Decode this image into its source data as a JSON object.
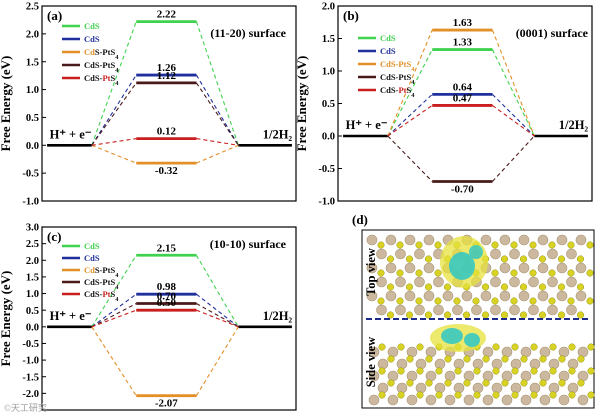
{
  "chart_data": [
    {
      "id": "a",
      "type": "line",
      "panel_label": "(a)",
      "surface_label": "(11-20) surface",
      "ylabel": "Free Energy (eV)",
      "ylim": [
        -1.0,
        2.5
      ],
      "yticks": [
        "-1.0",
        "-0.5",
        "0.0",
        "0.5",
        "1.0",
        "1.5",
        "2.0",
        "2.5"
      ],
      "ytick_values": [
        -1.0,
        -0.5,
        0.0,
        0.5,
        1.0,
        1.5,
        2.0,
        2.5
      ],
      "start_label": "H⁺ + e⁻",
      "end_label": "1/2H₂",
      "series": [
        {
          "name": "CdS",
          "name_parts": [
            {
              "text": "CdS",
              "color": "#3fd24e"
            }
          ],
          "color": "#3fd24e",
          "value": 2.22,
          "label": "2.22"
        },
        {
          "name": "CdS",
          "name_parts": [
            {
              "text": "CdS",
              "color": "#1f2f9c"
            }
          ],
          "color": "#1f2f9c",
          "value": 1.26,
          "label": "1.26"
        },
        {
          "name": "CdS-PtS4",
          "name_parts": [
            {
              "text": "Cd",
              "color": "#e38f27"
            },
            {
              "text": "S-PtS",
              "color": "#111111"
            },
            {
              "text": "4",
              "color": "#111111",
              "sub": true
            }
          ],
          "color": "#e38f27",
          "value": -0.32,
          "label": "-0.32"
        },
        {
          "name": "CdS-PtS4",
          "name_parts": [
            {
              "text": "CdS-PtS",
              "color": "#111111"
            },
            {
              "text": "4",
              "color": "#111111",
              "sub": true
            }
          ],
          "color": "#4a1a1a",
          "value": 1.12,
          "label": "1.12"
        },
        {
          "name": "CdS-PtS4",
          "name_parts": [
            {
              "text": "CdS-",
              "color": "#111111"
            },
            {
              "text": "Pt",
              "color": "#c81e1e"
            },
            {
              "text": "S",
              "color": "#111111"
            },
            {
              "text": "4",
              "color": "#111111",
              "sub": true
            }
          ],
          "color": "#c81e1e",
          "value": 0.12,
          "label": "0.12"
        }
      ]
    },
    {
      "id": "b",
      "type": "line",
      "panel_label": "(b)",
      "surface_label": "(0001) surface",
      "ylabel": "Free Energy (eV)",
      "ylim": [
        -1.0,
        2.0
      ],
      "yticks": [
        "-1.0",
        "-0.5",
        "0.0",
        "0.5",
        "1.0",
        "1.5",
        "2.0"
      ],
      "ytick_values": [
        -1.0,
        -0.5,
        0.0,
        0.5,
        1.0,
        1.5,
        2.0
      ],
      "start_label": "H⁺ + e⁻",
      "end_label": "1/2H₂",
      "series": [
        {
          "name": "CdS",
          "name_parts": [
            {
              "text": "CdS",
              "color": "#3fd24e"
            }
          ],
          "color": "#3fd24e",
          "value": 1.33,
          "label": "1.33"
        },
        {
          "name": "CdS",
          "name_parts": [
            {
              "text": "CdS",
              "color": "#1f2f9c"
            }
          ],
          "color": "#1f2f9c",
          "value": 0.64,
          "label": "0.64"
        },
        {
          "name": "CdS-PtS4",
          "name_parts": [
            {
              "text": "CdS-PtS",
              "color": "#e38f27"
            },
            {
              "text": "4",
              "color": "#e38f27",
              "sub": true
            }
          ],
          "color": "#e38f27",
          "value": 1.63,
          "label": "1.63"
        },
        {
          "name": "CdS-PtS4",
          "name_parts": [
            {
              "text": "CdS-PtS",
              "color": "#111111"
            },
            {
              "text": "4",
              "color": "#111111",
              "sub": true
            }
          ],
          "color": "#4a1a1a",
          "value": -0.7,
          "label": "-0.70"
        },
        {
          "name": "CdS-PtS4",
          "name_parts": [
            {
              "text": "CdS-",
              "color": "#111111"
            },
            {
              "text": "Pt",
              "color": "#c81e1e"
            },
            {
              "text": "S",
              "color": "#111111"
            },
            {
              "text": "4",
              "color": "#111111",
              "sub": true
            }
          ],
          "color": "#c81e1e",
          "value": 0.47,
          "label": "0.47"
        }
      ]
    },
    {
      "id": "c",
      "type": "line",
      "panel_label": "(c)",
      "surface_label": "(10-10) surface",
      "ylabel": "Free Energy (eV)",
      "ylim": [
        -2.5,
        3.0
      ],
      "yticks": [
        "-2.0",
        "-1.5",
        "-1.0",
        "-0.5",
        "0.0",
        "0.5",
        "1.0",
        "1.5",
        "2.0",
        "2.5",
        "3.0"
      ],
      "ytick_values": [
        -2.0,
        -1.5,
        -1.0,
        -0.5,
        0.0,
        0.5,
        1.0,
        1.5,
        2.0,
        2.5,
        3.0
      ],
      "start_label": "H⁺ + e⁻",
      "end_label": "1/2H₂",
      "series": [
        {
          "name": "CdS",
          "name_parts": [
            {
              "text": "CdS",
              "color": "#3fd24e"
            }
          ],
          "color": "#3fd24e",
          "value": 2.15,
          "label": "2.15"
        },
        {
          "name": "CdS",
          "name_parts": [
            {
              "text": "CdS",
              "color": "#1f2f9c"
            }
          ],
          "color": "#1f2f9c",
          "value": 0.98,
          "label": "0.98"
        },
        {
          "name": "CdS-PtS4",
          "name_parts": [
            {
              "text": "Cd",
              "color": "#e38f27"
            },
            {
              "text": "S-PtS",
              "color": "#111111"
            },
            {
              "text": "4",
              "color": "#111111",
              "sub": true
            }
          ],
          "color": "#e38f27",
          "value": -2.07,
          "label": "-2.07"
        },
        {
          "name": "CdS-PtS4",
          "name_parts": [
            {
              "text": "CdS-PtS",
              "color": "#111111"
            },
            {
              "text": "4",
              "color": "#111111",
              "sub": true
            }
          ],
          "color": "#4a1a1a",
          "value": 0.7,
          "label": "0.70"
        },
        {
          "name": "CdS-PtS4",
          "name_parts": [
            {
              "text": "CdS-",
              "color": "#111111"
            },
            {
              "text": "Pt",
              "color": "#c81e1e"
            },
            {
              "text": "S",
              "color": "#111111"
            },
            {
              "text": "4",
              "color": "#111111",
              "sub": true
            }
          ],
          "color": "#c81e1e",
          "value": 0.5,
          "label": "0.50"
        }
      ]
    }
  ],
  "panel_d": {
    "panel_label": "(d)",
    "top_view_label": "Top view",
    "side_view_label": "Side view",
    "colors": {
      "cd_atom": "#cbb89e",
      "s_atom": "#d8d224",
      "density_cyan": "#2ec7c7",
      "density_yellow": "#e6e23c",
      "divider": "#1c2a8c"
    }
  },
  "watermark": "©天工研究"
}
